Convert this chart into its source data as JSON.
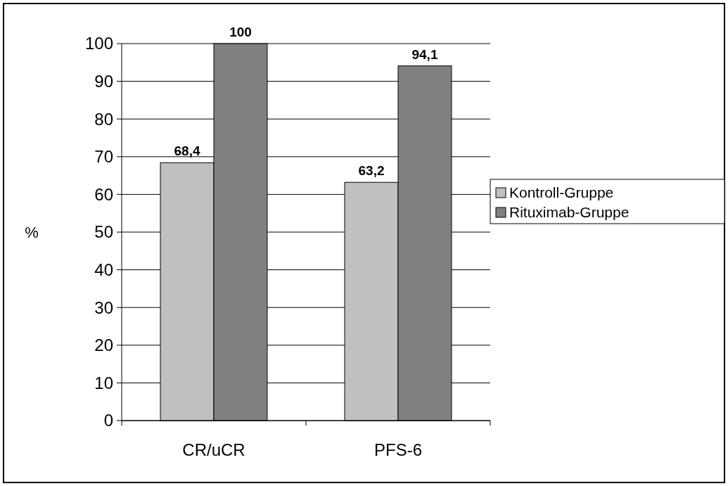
{
  "chart_data": {
    "type": "bar",
    "ylabel": "%",
    "categories": [
      "CR/uCR",
      "PFS-6"
    ],
    "series": [
      {
        "name": "Kontroll-Gruppe",
        "color": "#c0c0c0",
        "values": [
          68.4,
          63.2
        ],
        "value_labels": [
          "68,4",
          "63,2"
        ]
      },
      {
        "name": "Rituximab-Gruppe",
        "color": "#808080",
        "values": [
          100,
          94.1
        ],
        "value_labels": [
          "100",
          "94,1"
        ]
      }
    ],
    "ylim": [
      0,
      100
    ],
    "yticks": [
      0,
      10,
      20,
      30,
      40,
      50,
      60,
      70,
      80,
      90,
      100
    ],
    "grid": "y",
    "legend": "right"
  }
}
